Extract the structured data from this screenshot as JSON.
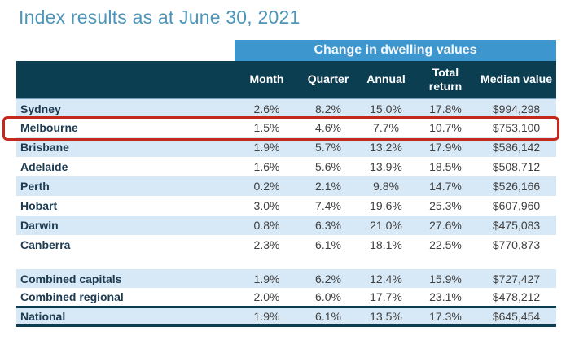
{
  "page": {
    "title": "Index results as at June 30, 2021"
  },
  "chart_data": {
    "type": "table",
    "title": "Index results as at June 30, 2021",
    "group_header": "Change in dwelling values",
    "columns": [
      "Month",
      "Quarter",
      "Annual",
      "Total return",
      "Median value"
    ],
    "rows": [
      {
        "label": "Sydney",
        "month": "2.6%",
        "quarter": "8.2%",
        "annual": "15.0%",
        "total_return": "17.8%",
        "median_value": "$994,298",
        "highlighted": false
      },
      {
        "label": "Melbourne",
        "month": "1.5%",
        "quarter": "4.6%",
        "annual": "7.7%",
        "total_return": "10.7%",
        "median_value": "$753,100",
        "highlighted": true
      },
      {
        "label": "Brisbane",
        "month": "1.9%",
        "quarter": "5.7%",
        "annual": "13.2%",
        "total_return": "17.9%",
        "median_value": "$586,142",
        "highlighted": false
      },
      {
        "label": "Adelaide",
        "month": "1.6%",
        "quarter": "5.6%",
        "annual": "13.9%",
        "total_return": "18.5%",
        "median_value": "$508,712",
        "highlighted": false
      },
      {
        "label": "Perth",
        "month": "0.2%",
        "quarter": "2.1%",
        "annual": "9.8%",
        "total_return": "14.7%",
        "median_value": "$526,166",
        "highlighted": false
      },
      {
        "label": "Hobart",
        "month": "3.0%",
        "quarter": "7.4%",
        "annual": "19.6%",
        "total_return": "25.3%",
        "median_value": "$607,960",
        "highlighted": false
      },
      {
        "label": "Darwin",
        "month": "0.8%",
        "quarter": "6.3%",
        "annual": "21.0%",
        "total_return": "27.6%",
        "median_value": "$475,083",
        "highlighted": false
      },
      {
        "label": "Canberra",
        "month": "2.3%",
        "quarter": "6.1%",
        "annual": "18.1%",
        "total_return": "22.5%",
        "median_value": "$770,873",
        "highlighted": false
      }
    ],
    "summary_rows": [
      {
        "label": "Combined capitals",
        "month": "1.9%",
        "quarter": "6.2%",
        "annual": "12.4%",
        "total_return": "15.9%",
        "median_value": "$727,427",
        "highlighted": false
      },
      {
        "label": "Combined regional",
        "month": "2.0%",
        "quarter": "6.0%",
        "annual": "17.7%",
        "total_return": "23.1%",
        "median_value": "$478,212",
        "highlighted": false
      },
      {
        "label": "National",
        "month": "1.9%",
        "quarter": "6.1%",
        "annual": "13.5%",
        "total_return": "17.3%",
        "median_value": "$645,454",
        "highlighted": false
      }
    ],
    "highlighted_row": "Melbourne"
  },
  "colors": {
    "title_text": "#4E95BA",
    "band_blue": "#3E96CE",
    "header_dark": "#0C3E52",
    "row_shade": "#D7E8F6",
    "label_text": "#1C3A50",
    "data_text": "#404040",
    "highlight_red": "#C3291D"
  }
}
